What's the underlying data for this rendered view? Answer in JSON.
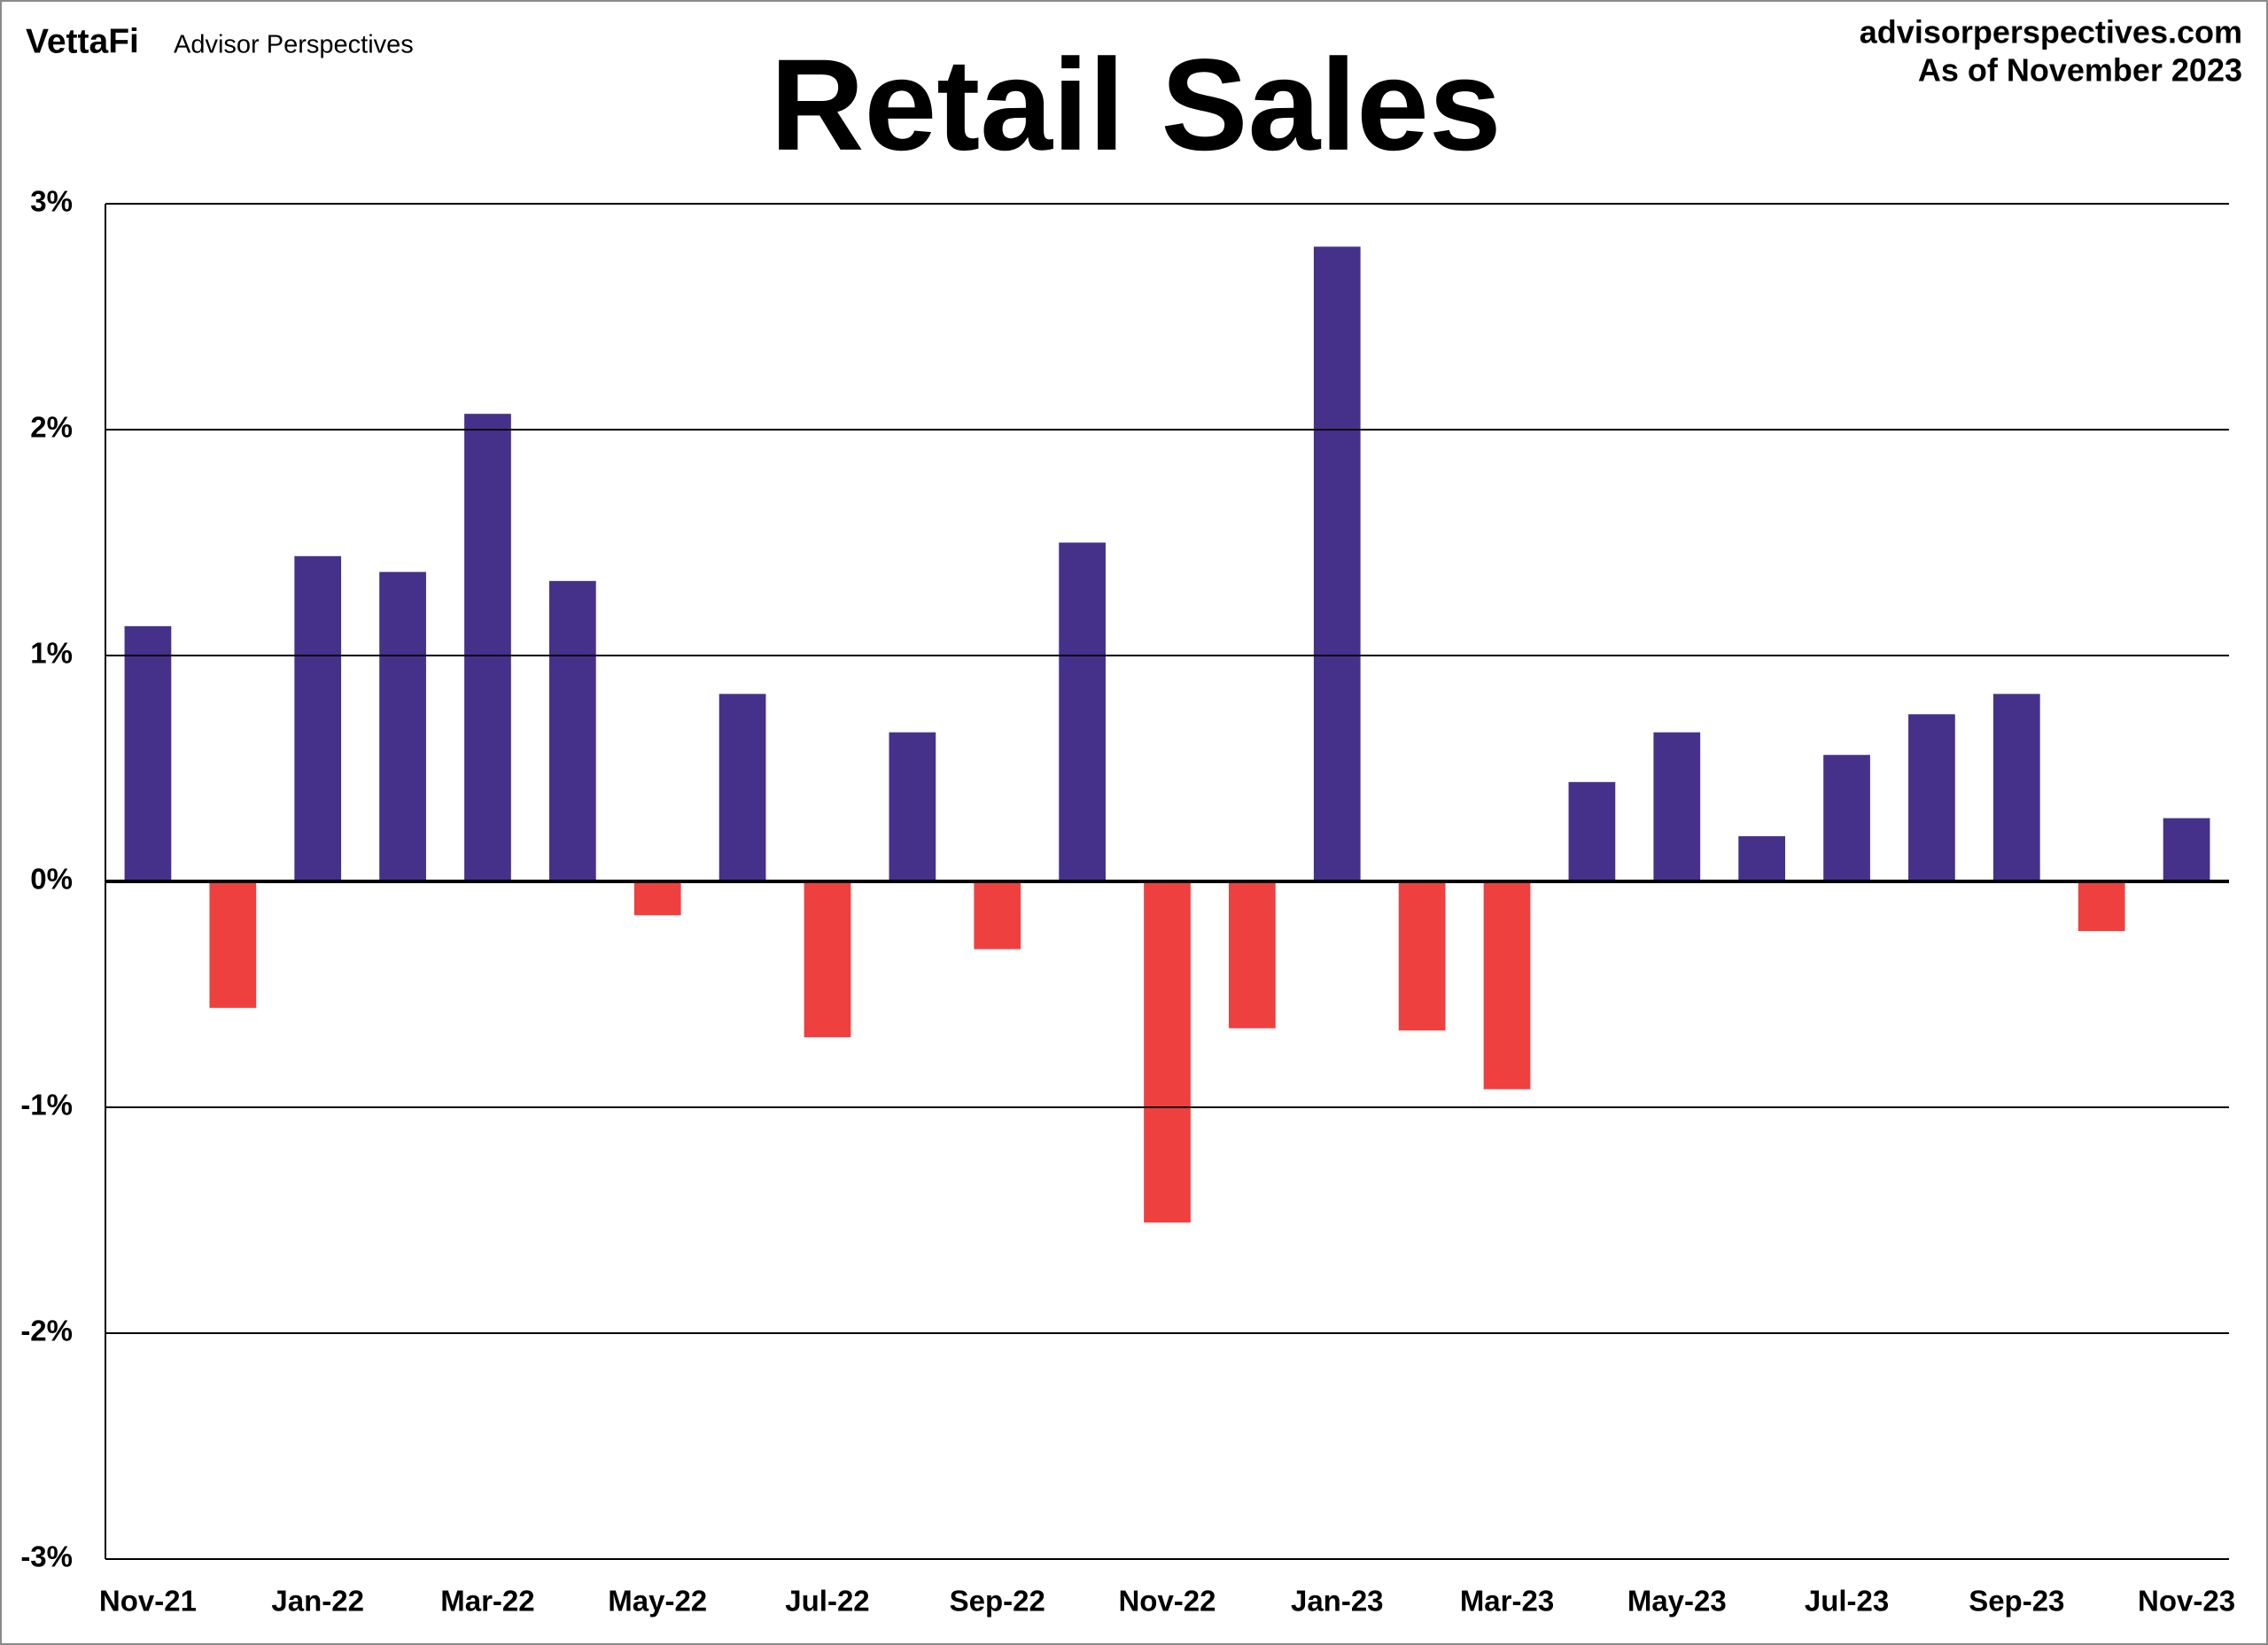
{
  "brand": "VettaFi",
  "brand_subtitle": "Advisor Perspectives",
  "source": "advisorperspectives.com",
  "as_of": "As of November 2023",
  "chart_data": {
    "type": "bar",
    "title": "Retail Sales",
    "categories": [
      "Nov-21",
      null,
      "Jan-22",
      null,
      "Mar-22",
      null,
      "May-22",
      null,
      "Jul-22",
      null,
      "Sep-22",
      null,
      "Nov-22",
      null,
      "Jan-23",
      null,
      "Mar-23",
      null,
      "May-23",
      null,
      "Jul-23",
      null,
      "Sep-23",
      null,
      "Nov-23"
    ],
    "values": [
      1.13,
      -0.56,
      1.44,
      1.37,
      2.07,
      1.33,
      -0.15,
      0.83,
      -0.69,
      0.66,
      -0.3,
      1.5,
      -1.51,
      -0.65,
      2.81,
      -0.66,
      -0.92,
      0.44,
      0.66,
      0.2,
      0.56,
      0.74,
      0.83,
      -0.22,
      0.28
    ],
    "color": "#46318a",
    "negative_color": "#ef4040",
    "ylim": [
      -3,
      3
    ],
    "yticks": [
      {
        "value": -3,
        "label": "-3%"
      },
      {
        "value": -2,
        "label": "-2%"
      },
      {
        "value": -1,
        "label": "-1%"
      },
      {
        "value": 0,
        "label": "0%"
      },
      {
        "value": 1,
        "label": "1%"
      },
      {
        "value": 2,
        "label": "2%"
      },
      {
        "value": 3,
        "label": "3%"
      }
    ],
    "grid": true
  }
}
